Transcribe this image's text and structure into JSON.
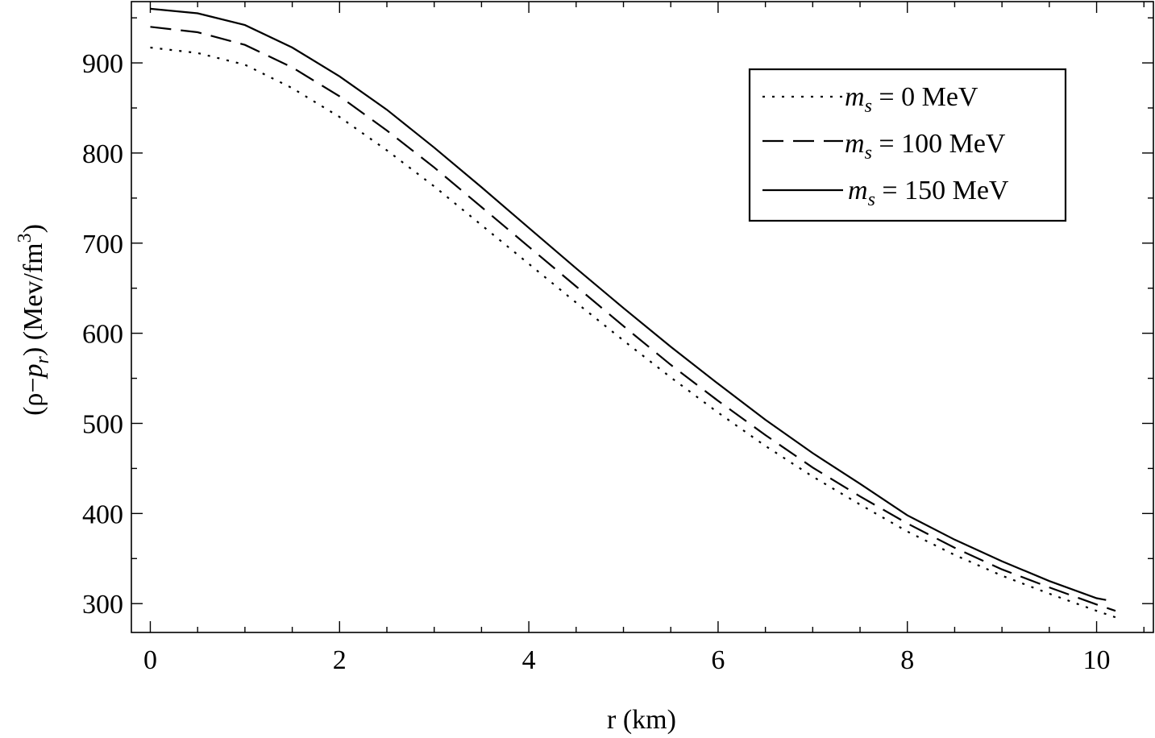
{
  "chart_data": {
    "type": "line",
    "xlabel": "r (km)",
    "ylabel": "(ρ−p_r) (Mev/fm³)",
    "ylabel_parts": {
      "open": "(ρ−",
      "p": "p",
      "sub": "r",
      "close": ") (Mev/fm",
      "sup": "3",
      "end": ")"
    },
    "xlim": [
      -0.2,
      10.6
    ],
    "ylim": [
      268,
      968
    ],
    "xticks": [
      0,
      2,
      4,
      6,
      8,
      10
    ],
    "xtick_labels": [
      "0",
      "2",
      "4",
      "6",
      "8",
      "10"
    ],
    "yticks": [
      300,
      400,
      500,
      600,
      700,
      800,
      900
    ],
    "ytick_labels": [
      "300",
      "400",
      "500",
      "600",
      "700",
      "800",
      "900"
    ],
    "x_minor_step": 0.5,
    "y_minor_step": 50,
    "grid": false,
    "legend_placement": "top-right",
    "series": [
      {
        "name": "m_s = 0 MeV",
        "legend_math": "m",
        "legend_sub": "s",
        "legend_rest": " = 0 MeV",
        "dash": "dotted",
        "x": [
          0,
          0.5,
          1,
          1.5,
          2,
          2.5,
          3,
          3.5,
          4,
          4.5,
          5,
          5.5,
          6,
          6.5,
          7,
          7.5,
          8,
          8.5,
          9,
          9.5,
          10,
          10.25
        ],
        "y": [
          917,
          911,
          898,
          872,
          840,
          803,
          763,
          720,
          677,
          634,
          592,
          551,
          512,
          475,
          441,
          410,
          380,
          354,
          331,
          311,
          292,
          283
        ]
      },
      {
        "name": "m_s = 100 MeV",
        "legend_math": "m",
        "legend_sub": "s",
        "legend_rest": " = 100 MeV",
        "dash": "dashed",
        "x": [
          0,
          0.5,
          1,
          1.5,
          2,
          2.5,
          3,
          3.5,
          4,
          4.5,
          5,
          5.5,
          6,
          6.5,
          7,
          7.5,
          8,
          8.5,
          9,
          9.5,
          10,
          10.2
        ],
        "y": [
          940,
          934,
          920,
          895,
          863,
          825,
          784,
          740,
          696,
          652,
          608,
          565,
          525,
          487,
          451,
          419,
          389,
          362,
          338,
          318,
          299,
          292
        ]
      },
      {
        "name": "m_s = 150 MeV",
        "legend_math": "m",
        "legend_sub": "s",
        "legend_rest": " = 150 MeV",
        "dash": "solid",
        "x": [
          0,
          0.5,
          1,
          1.5,
          2,
          2.5,
          3,
          3.5,
          4,
          4.5,
          5,
          5.5,
          6,
          6.5,
          7,
          7.5,
          8,
          8.5,
          9,
          9.5,
          10,
          10.1
        ],
        "y": [
          960,
          955,
          942,
          917,
          885,
          848,
          806,
          762,
          717,
          672,
          628,
          585,
          544,
          504,
          467,
          433,
          398,
          371,
          347,
          325,
          306,
          304
        ]
      }
    ]
  }
}
